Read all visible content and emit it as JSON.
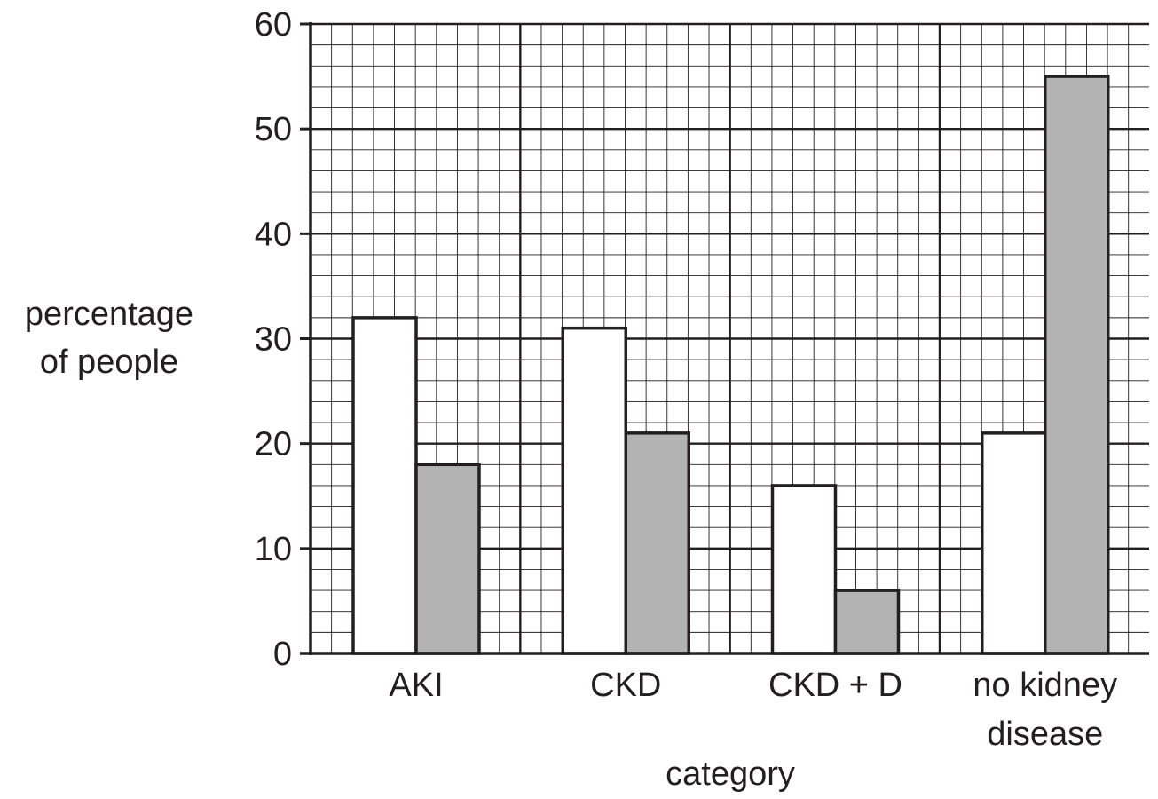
{
  "chart_data": {
    "type": "bar",
    "categories": [
      [
        "AKI"
      ],
      [
        "CKD"
      ],
      [
        "CKD + D"
      ],
      [
        "no kidney",
        "disease"
      ]
    ],
    "series": [
      {
        "values": [
          32,
          31,
          16,
          21
        ],
        "color": "#ffffff"
      },
      {
        "values": [
          18,
          21,
          6,
          55
        ],
        "color": "#b3b3b3"
      }
    ],
    "xlabel": "category",
    "ylabel": [
      "percentage",
      "of people"
    ],
    "ylim": [
      0,
      60
    ],
    "yticks": [
      "0",
      "10",
      "20",
      "30",
      "40",
      "50",
      "60"
    ],
    "grid": true,
    "colors": {
      "ink": "#231f20",
      "grid": "#231f20"
    }
  }
}
